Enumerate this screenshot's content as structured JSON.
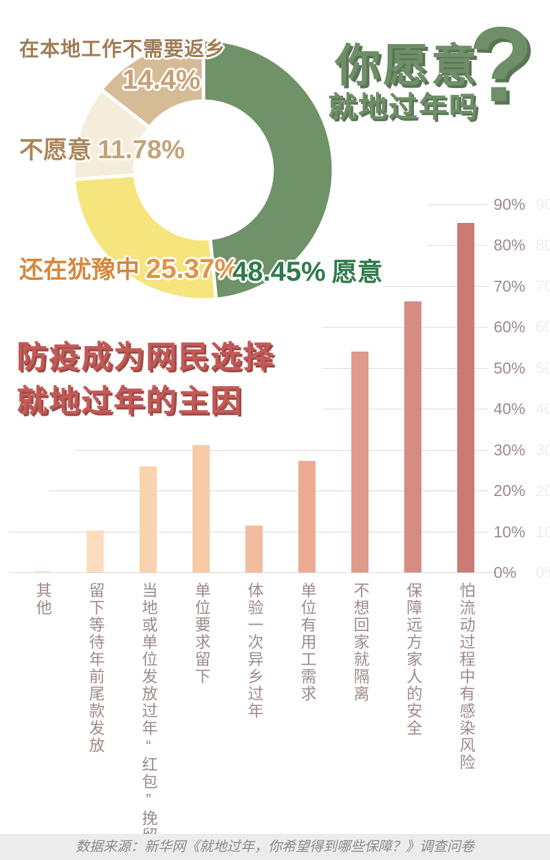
{
  "header": {
    "title_line1": "你愿意",
    "title_line2": "就地过年吗",
    "question_mark": "?"
  },
  "donut_labels": {
    "local_work": {
      "label": "在本地工作不需要返乡",
      "value": "14.4%"
    },
    "unwilling": {
      "label": "不愿意",
      "value": "11.78%"
    },
    "hesitant": {
      "label": "还在犹豫中",
      "value": "25.37%"
    },
    "willing": {
      "value": "48.45%",
      "label": "愿意"
    }
  },
  "subtitle": {
    "line1": "防疫成为网民选择",
    "line2": "就地过年的主因"
  },
  "footer": {
    "source": "数据来源：新华网《就地过年，你希望得到哪些保障？》调查问卷"
  },
  "chart_data": [
    {
      "type": "pie",
      "subtype": "donut",
      "title": "你愿意就地过年吗?",
      "legend_position": "around",
      "segments": [
        {
          "label": "愿意",
          "value": 48.45,
          "color": "#6f9268",
          "label_color": "#317a4d"
        },
        {
          "label": "还在犹豫中",
          "value": 25.37,
          "color": "#f6e47c",
          "label_color": "#d6873c"
        },
        {
          "label": "不愿意",
          "value": 11.78,
          "color": "#f5eddb",
          "label_color": "#ab8559"
        },
        {
          "label": "在本地工作不需要返乡",
          "value": 14.4,
          "color": "#d6bb97",
          "label_color": "#9f7c55"
        }
      ]
    },
    {
      "type": "bar",
      "title": "防疫成为网民选择就地过年的主因",
      "categories": [
        "其他",
        "留下等待年前尾款发放",
        "当地或单位发放过年“红包”挽留",
        "单位要求留下",
        "体验一次异乡过年",
        "单位有用工需求",
        "不想回家就隔离",
        "保障远方家人的安全",
        "怕流动过程中有感染风险"
      ],
      "values": [
        0.4,
        10.3,
        25.8,
        31.1,
        11.5,
        27.3,
        53.9,
        66.3,
        85.4
      ],
      "unit": "%",
      "ylim": [
        0,
        90
      ],
      "yticks": [
        0,
        10,
        20,
        30,
        40,
        50,
        60,
        70,
        80,
        90
      ],
      "grid": true,
      "bar_colors": [
        "#fde8d2",
        "#fcdebe",
        "#fad2ae",
        "#f8caa6",
        "#f2bc9e",
        "#ecab92",
        "#df9a8c",
        "#d68c82",
        "#cb7b73"
      ]
    }
  ]
}
